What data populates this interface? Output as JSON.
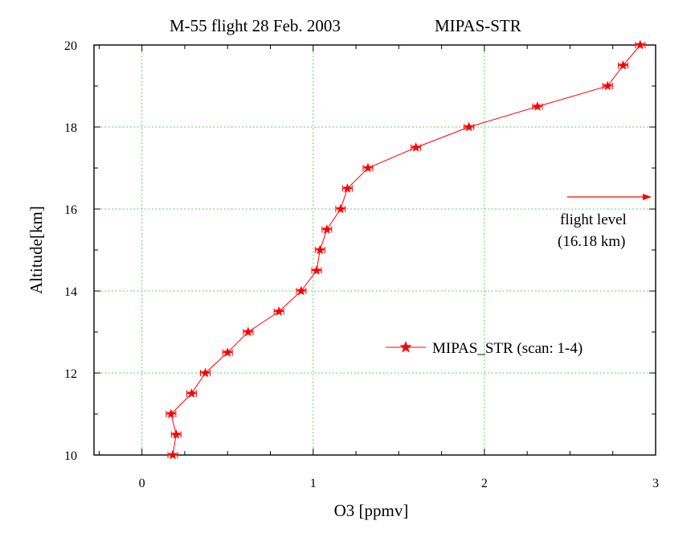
{
  "chart_data": {
    "type": "line",
    "title": "M-55 flight 28 Feb. 2003",
    "subtitle": "MIPAS-STR",
    "xlabel": "O3 [ppmv]",
    "ylabel": "Altitude[km]",
    "xlim": [
      -0.28,
      3.0
    ],
    "ylim": [
      10,
      20
    ],
    "xticks": [
      0,
      1,
      2,
      3
    ],
    "xtick_labels": [
      "0",
      "1",
      "2",
      "3"
    ],
    "yticks": [
      10,
      12,
      14,
      16,
      18,
      20
    ],
    "ytick_labels": [
      "10",
      "12",
      "14",
      "16",
      "18",
      "20"
    ],
    "grid": true,
    "legend_position": "right-middle",
    "series": [
      {
        "name": "MIPAS_STR (scan: 1-4)",
        "color": "#ff0000",
        "marker": "star",
        "x": [
          0.18,
          0.2,
          0.17,
          0.29,
          0.37,
          0.5,
          0.62,
          0.8,
          0.93,
          1.02,
          1.04,
          1.08,
          1.16,
          1.2,
          1.32,
          1.6,
          1.91,
          2.31,
          2.72,
          2.81,
          2.91
        ],
        "y": [
          10.0,
          10.5,
          11.0,
          11.5,
          12.0,
          12.5,
          13.0,
          13.5,
          14.0,
          14.5,
          15.0,
          15.5,
          16.0,
          16.5,
          17.0,
          17.5,
          18.0,
          18.5,
          19.0,
          19.5,
          20.0
        ]
      }
    ],
    "annotations": [
      {
        "text_line1": "flight level",
        "text_line2": "(16.18 km)",
        "arrow": "right"
      }
    ]
  }
}
